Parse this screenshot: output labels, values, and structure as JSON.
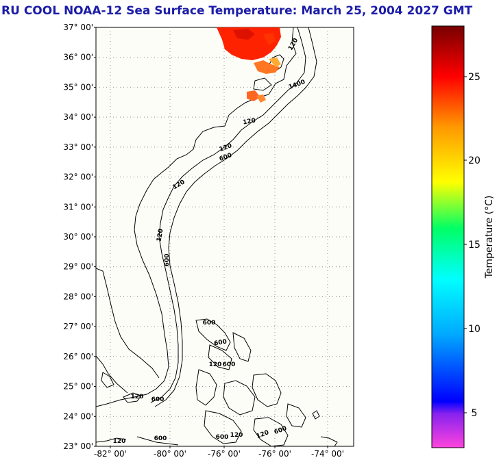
{
  "title": "RU COOL  NOAA-12  Sea Surface Temperature:  March 25, 2004 2027 GMT",
  "map": {
    "lat_labels": [
      "37° 00'",
      "36° 00'",
      "35° 00'",
      "34° 00'",
      "33° 00'",
      "32° 00'",
      "31° 00'",
      "30° 00'",
      "29° 00'",
      "28° 00'",
      "27° 00'",
      "26° 00'",
      "25° 00'",
      "24° 00'",
      "23° 00'"
    ],
    "lon_labels": [
      "-82° 00'",
      "-80° 00'",
      "-76° 00'",
      "-76° 00'",
      "-74° 00'"
    ],
    "contour_labels": [
      {
        "text": "120"
      },
      {
        "text": "1400"
      },
      {
        "text": "120"
      },
      {
        "text": "120"
      },
      {
        "text": "600"
      },
      {
        "text": "120"
      },
      {
        "text": "120"
      },
      {
        "text": "600"
      },
      {
        "text": "600"
      },
      {
        "text": "600"
      },
      {
        "text": "120"
      },
      {
        "text": "600"
      },
      {
        "text": "120"
      },
      {
        "text": "600"
      },
      {
        "text": "120"
      },
      {
        "text": "600"
      },
      {
        "text": "120"
      },
      {
        "text": "600"
      },
      {
        "text": "120"
      },
      {
        "text": "600"
      }
    ]
  },
  "colorbar": {
    "label": "Temperature (°C)",
    "ticks": [
      "5",
      "10",
      "15",
      "20",
      "25"
    ]
  }
}
